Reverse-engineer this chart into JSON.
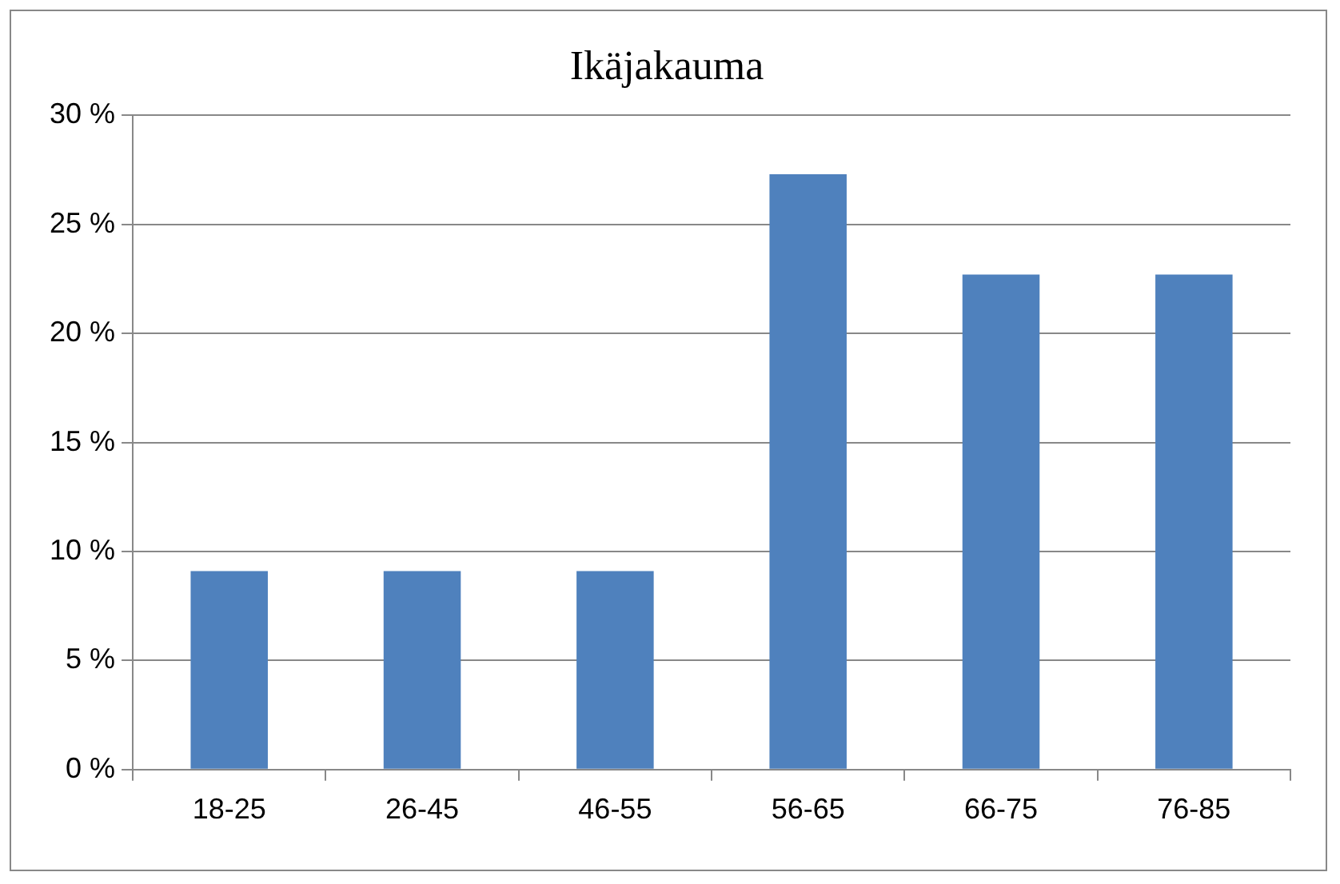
{
  "chart_data": {
    "type": "bar",
    "title": "Ikäjakauma",
    "categories": [
      "18-25",
      "26-45",
      "46-55",
      "56-65",
      "66-75",
      "76-85"
    ],
    "values": [
      9.1,
      9.1,
      9.1,
      27.3,
      22.7,
      22.7
    ],
    "color": "#4f81bd",
    "ylim": [
      0,
      30
    ],
    "yticks": [
      {
        "value": 0,
        "label": "0 %"
      },
      {
        "value": 5,
        "label": "5 %"
      },
      {
        "value": 10,
        "label": "10 %"
      },
      {
        "value": 15,
        "label": "15 %"
      },
      {
        "value": 20,
        "label": "20 %"
      },
      {
        "value": 25,
        "label": "25 %"
      },
      {
        "value": 30,
        "label": "30 %"
      }
    ],
    "grid": "y",
    "legend": false
  }
}
